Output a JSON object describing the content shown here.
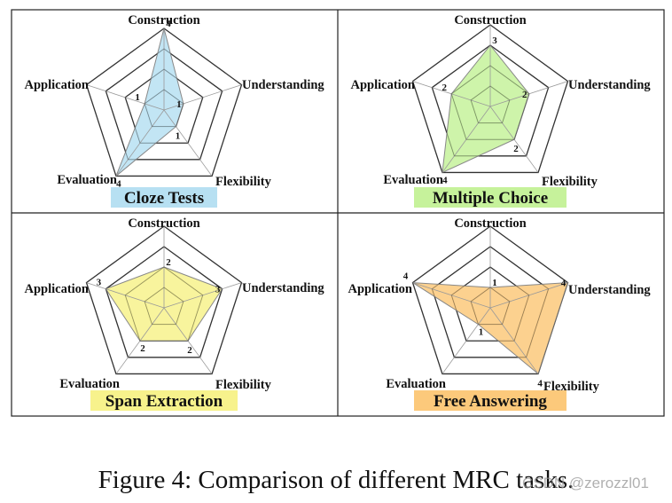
{
  "colors": {
    "cloze": "#b7e0f2",
    "multiple": "#c6f29b",
    "span": "#f7f28c",
    "free": "#fcc97b",
    "grid": "#333333"
  },
  "chart_data": [
    {
      "type": "radar",
      "title": "Cloze Tests",
      "axes": [
        "Construction",
        "Understanding",
        "Flexibility",
        "Evaluation",
        "Application"
      ],
      "values": [
        4,
        1,
        1,
        4,
        1
      ],
      "value_labels": [
        "4",
        "1",
        "1",
        "4",
        "1"
      ],
      "rmax": 4,
      "color_key": "cloze"
    },
    {
      "type": "radar",
      "title": "Multiple Choice",
      "axes": [
        "Construction",
        "Understanding",
        "Flexibility",
        "Evaluation",
        "Application"
      ],
      "values": [
        3,
        2,
        2,
        4,
        2
      ],
      "value_labels": [
        "3",
        "2",
        "2",
        "4",
        "2"
      ],
      "rmax": 4,
      "color_key": "multiple"
    },
    {
      "type": "radar",
      "title": "Span Extraction",
      "axes": [
        "Construction",
        "Understanding",
        "Flexibility",
        "Evaluation",
        "Application"
      ],
      "values": [
        2,
        3,
        2,
        2,
        3
      ],
      "value_labels": [
        "2",
        "3",
        "2",
        "2",
        "3"
      ],
      "rmax": 4,
      "color_key": "span"
    },
    {
      "type": "radar",
      "title": "Free Answering",
      "axes": [
        "Construction",
        "Understanding",
        "Flexibility",
        "Evaluation",
        "Application"
      ],
      "values": [
        1,
        4,
        4,
        1,
        4
      ],
      "value_labels": [
        "1",
        "4",
        "4",
        "1",
        "4"
      ],
      "rmax": 4,
      "color_key": "free"
    }
  ],
  "caption": "Figure 4: Comparison of different MRC tasks.",
  "watermark": "CSDN @zerozzl01"
}
